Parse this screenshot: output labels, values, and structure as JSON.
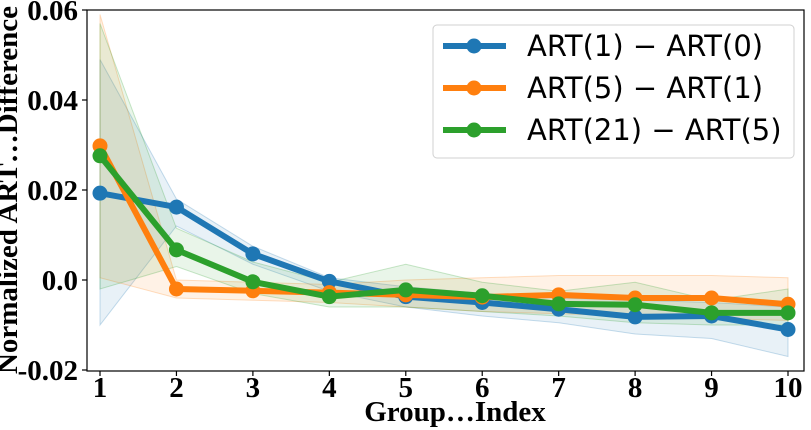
{
  "chart_data": {
    "type": "line",
    "title": "",
    "xlabel": "Group…Index",
    "ylabel": "Normalized ART…Difference",
    "x": [
      1,
      2,
      3,
      4,
      5,
      6,
      7,
      8,
      9,
      10
    ],
    "xticks": [
      "1",
      "2",
      "3",
      "4",
      "5",
      "6",
      "7",
      "8",
      "9",
      "10"
    ],
    "yticks": [
      "-0.02",
      "0.0",
      "0.02",
      "0.04",
      "0.06"
    ],
    "ylim": [
      -0.02,
      0.06
    ],
    "xlim": [
      0.98,
      10.02
    ],
    "grid": false,
    "legend_position": "upper right",
    "series": [
      {
        "name": "ART(1) − ART(0)",
        "color": "#1f77b4",
        "values": [
          0.0193,
          0.0162,
          0.0058,
          -0.0003,
          -0.0037,
          -0.005,
          -0.0065,
          -0.0082,
          -0.008,
          -0.011
        ],
        "band_upper": [
          0.049,
          0.018,
          0.0075,
          0.0005,
          -0.0015,
          -0.003,
          -0.004,
          -0.0045,
          -0.005,
          -0.006
        ],
        "band_lower": [
          -0.01,
          0.012,
          0.0035,
          -0.0025,
          -0.006,
          -0.008,
          -0.0095,
          -0.012,
          -0.013,
          -0.017
        ]
      },
      {
        "name": "ART(5) − ART(1)",
        "color": "#ff7f0e",
        "values": [
          0.0298,
          -0.002,
          -0.0024,
          -0.0028,
          -0.0033,
          -0.0038,
          -0.0033,
          -0.004,
          -0.004,
          -0.0054
        ],
        "band_upper": [
          0.059,
          0.0,
          -0.0005,
          -0.001,
          0.0,
          0.0005,
          0.001,
          0.001,
          0.001,
          0.0005
        ],
        "band_lower": [
          0.0005,
          -0.004,
          -0.0045,
          -0.005,
          -0.006,
          -0.007,
          -0.0075,
          -0.008,
          -0.0085,
          -0.009
        ]
      },
      {
        "name": "ART(21) − ART(5)",
        "color": "#2ca02c",
        "values": [
          0.0276,
          0.0067,
          -0.0004,
          -0.0037,
          -0.0022,
          -0.0035,
          -0.0053,
          -0.0055,
          -0.0073,
          -0.0073
        ],
        "band_upper": [
          0.057,
          0.0115,
          0.004,
          -0.0005,
          0.0035,
          -0.0005,
          -0.0025,
          -0.0005,
          -0.0045,
          -0.002
        ],
        "band_lower": [
          -0.002,
          0.003,
          -0.003,
          -0.006,
          -0.006,
          -0.007,
          -0.008,
          -0.0095,
          -0.01,
          -0.01
        ]
      }
    ]
  },
  "axes": {
    "xlabel": "Group…Index",
    "ylabel": "Normalized ART…Difference"
  },
  "legend": {
    "items": [
      {
        "label": "ART(1) − ART(0)",
        "color": "#1f77b4"
      },
      {
        "label": "ART(5) − ART(1)",
        "color": "#ff7f0e"
      },
      {
        "label": "ART(21) − ART(5)",
        "color": "#2ca02c"
      }
    ]
  }
}
